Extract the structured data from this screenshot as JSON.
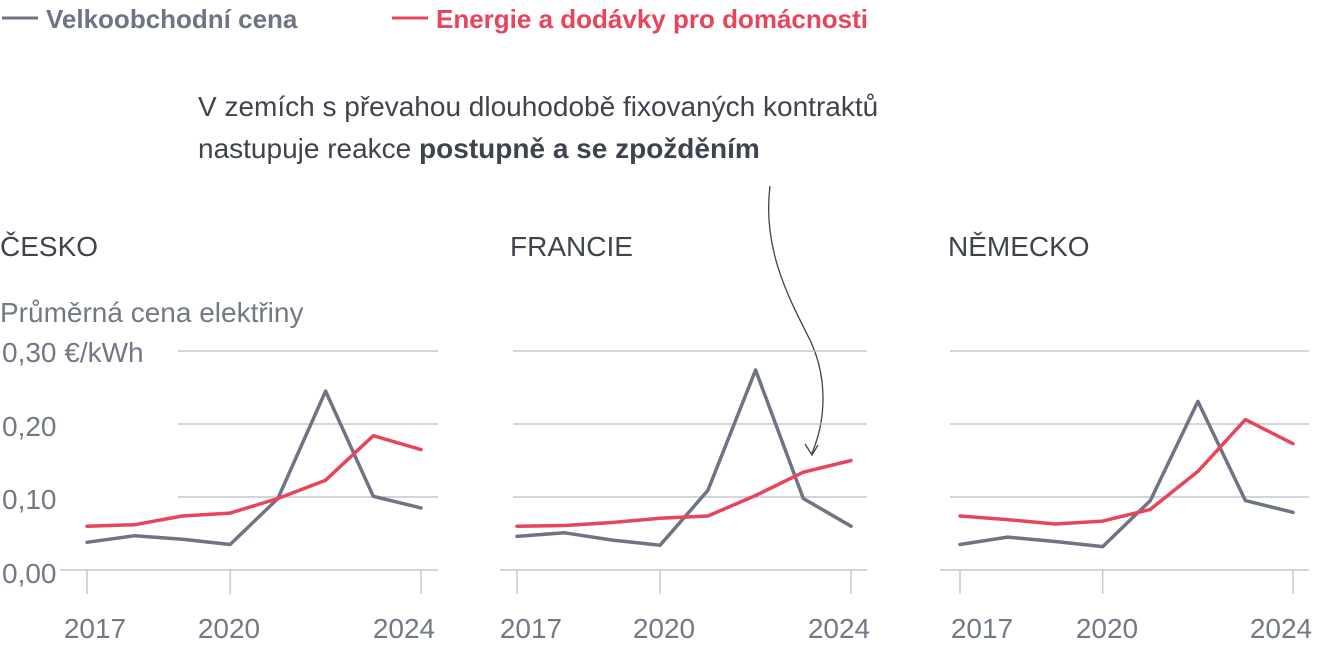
{
  "legend": {
    "wholesale_label": "Velkoobchodní cena",
    "household_label": "Energie a dodávky pro domácnosti"
  },
  "annotation": {
    "line1": "V zemích s převahou dlouhodobě fixovaných kontraktů",
    "line2_regular": "nastupuje reakce ",
    "line2_bold": "postupně a se zpožděním"
  },
  "colors": {
    "wholesale": "#6e7483",
    "household": "#e8455c",
    "grid": "#b9bcc8",
    "text": "#3f4350",
    "muted": "#737886"
  },
  "chart_data": [
    {
      "type": "line",
      "title": "ČESKO",
      "ylabel": "Průměrná cena elektřiny",
      "y_ticks": [
        "0,00",
        "0,10",
        "0,20",
        "0,30 €/kWh"
      ],
      "ylim": [
        0,
        0.3
      ],
      "x_ticks": [
        "2017",
        "2020",
        "2024"
      ],
      "x": [
        2017,
        2018,
        2019,
        2020,
        2021,
        2022,
        2023,
        2024
      ],
      "series": [
        {
          "name": "Velkoobchodní cena",
          "values": [
            0.038,
            0.047,
            0.042,
            0.035,
            0.098,
            0.245,
            0.101,
            0.085
          ]
        },
        {
          "name": "Energie a dodávky pro domácnosti",
          "values": [
            0.06,
            0.062,
            0.074,
            0.078,
            0.098,
            0.123,
            0.184,
            0.165
          ]
        }
      ]
    },
    {
      "type": "line",
      "title": "FRANCIE",
      "ylim": [
        0,
        0.3
      ],
      "x_ticks": [
        "2017",
        "2020",
        "2024"
      ],
      "x": [
        2017,
        2018,
        2019,
        2020,
        2021,
        2022,
        2023,
        2024
      ],
      "series": [
        {
          "name": "Velkoobchodní cena",
          "values": [
            0.046,
            0.051,
            0.041,
            0.034,
            0.109,
            0.274,
            0.098,
            0.06
          ]
        },
        {
          "name": "Energie a dodávky pro domácnosti",
          "values": [
            0.06,
            0.061,
            0.065,
            0.071,
            0.074,
            0.102,
            0.134,
            0.15
          ]
        }
      ]
    },
    {
      "type": "line",
      "title": "NĚMECKO",
      "ylim": [
        0,
        0.3
      ],
      "x_ticks": [
        "2017",
        "2020",
        "2024"
      ],
      "x": [
        2017,
        2018,
        2019,
        2020,
        2021,
        2022,
        2023,
        2024
      ],
      "series": [
        {
          "name": "Velkoobchodní cena",
          "values": [
            0.035,
            0.045,
            0.039,
            0.032,
            0.095,
            0.231,
            0.095,
            0.079
          ]
        },
        {
          "name": "Energie a dodávky pro domácnosti",
          "values": [
            0.074,
            0.069,
            0.063,
            0.067,
            0.083,
            0.135,
            0.206,
            0.173
          ]
        }
      ]
    }
  ]
}
